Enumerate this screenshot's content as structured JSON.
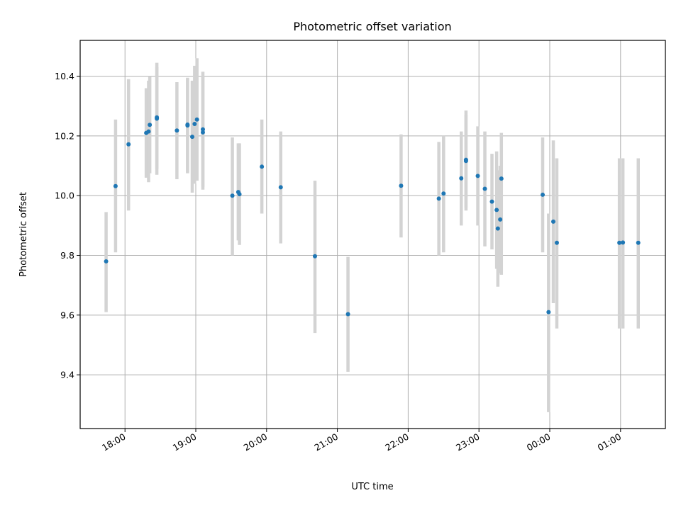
{
  "chart_data": {
    "type": "scatter",
    "title": "Photometric offset variation",
    "xlabel": "UTC time",
    "ylabel": "Photometric offset",
    "x_unit": "hours (UTC)",
    "xlim": [
      "17:22",
      "01:38"
    ],
    "ylim": [
      9.22,
      10.52
    ],
    "x_ticks": [
      "18:00",
      "19:00",
      "20:00",
      "21:00",
      "22:00",
      "23:00",
      "00:00",
      "01:00"
    ],
    "y_ticks": [
      "9.4",
      "9.6",
      "9.8",
      "10.0",
      "10.2",
      "10.4"
    ],
    "grid": true,
    "legend": "none",
    "colors": {
      "point": "#1f77b4",
      "errorbar": "#d3d3d3",
      "grid": "#b0b0b0"
    },
    "points": [
      {
        "x": "17:44",
        "y": 9.78,
        "lo": 9.61,
        "hi": 9.945
      },
      {
        "x": "17:52",
        "y": 10.032,
        "lo": 9.81,
        "hi": 10.255
      },
      {
        "x": "18:03",
        "y": 10.172,
        "lo": 9.95,
        "hi": 10.39
      },
      {
        "x": "18:18",
        "y": 10.21,
        "lo": 10.06,
        "hi": 10.36
      },
      {
        "x": "18:20",
        "y": 10.215,
        "lo": 10.045,
        "hi": 10.385
      },
      {
        "x": "18:21",
        "y": 10.237,
        "lo": 10.075,
        "hi": 10.4
      },
      {
        "x": "18:27",
        "y": 10.262,
        "lo": 10.07,
        "hi": 10.445
      },
      {
        "x": "18:27",
        "y": 10.258,
        "lo": 10.09,
        "hi": 10.43
      },
      {
        "x": "18:44",
        "y": 10.218,
        "lo": 10.055,
        "hi": 10.38
      },
      {
        "x": "18:53",
        "y": 10.235,
        "lo": 10.075,
        "hi": 10.395
      },
      {
        "x": "18:53",
        "y": 10.238,
        "lo": 10.08,
        "hi": 10.39
      },
      {
        "x": "18:57",
        "y": 10.197,
        "lo": 10.01,
        "hi": 10.385
      },
      {
        "x": "18:59",
        "y": 10.24,
        "lo": 10.04,
        "hi": 10.435
      },
      {
        "x": "19:01",
        "y": 10.255,
        "lo": 10.05,
        "hi": 10.46
      },
      {
        "x": "19:06",
        "y": 10.222,
        "lo": 10.02,
        "hi": 10.415
      },
      {
        "x": "19:06",
        "y": 10.212,
        "lo": 10.03,
        "hi": 10.4
      },
      {
        "x": "19:31",
        "y": 10.0,
        "lo": 9.8,
        "hi": 10.195
      },
      {
        "x": "19:36",
        "y": 10.012,
        "lo": 9.85,
        "hi": 10.175
      },
      {
        "x": "19:37",
        "y": 10.005,
        "lo": 9.835,
        "hi": 10.175
      },
      {
        "x": "19:56",
        "y": 10.097,
        "lo": 9.94,
        "hi": 10.255
      },
      {
        "x": "20:12",
        "y": 10.028,
        "lo": 9.84,
        "hi": 10.215
      },
      {
        "x": "20:41",
        "y": 9.797,
        "lo": 9.54,
        "hi": 10.05
      },
      {
        "x": "21:09",
        "y": 9.603,
        "lo": 9.41,
        "hi": 9.795
      },
      {
        "x": "21:54",
        "y": 10.033,
        "lo": 9.86,
        "hi": 10.205
      },
      {
        "x": "22:26",
        "y": 9.99,
        "lo": 9.8,
        "hi": 10.18
      },
      {
        "x": "22:30",
        "y": 10.007,
        "lo": 9.81,
        "hi": 10.2
      },
      {
        "x": "22:45",
        "y": 10.058,
        "lo": 9.9,
        "hi": 10.215
      },
      {
        "x": "22:49",
        "y": 10.12,
        "lo": 9.95,
        "hi": 10.285
      },
      {
        "x": "22:49",
        "y": 10.116,
        "lo": 9.96,
        "hi": 10.27
      },
      {
        "x": "22:59",
        "y": 10.066,
        "lo": 9.9,
        "hi": 10.232
      },
      {
        "x": "23:05",
        "y": 10.023,
        "lo": 9.83,
        "hi": 10.215
      },
      {
        "x": "23:11",
        "y": 9.98,
        "lo": 9.82,
        "hi": 10.14
      },
      {
        "x": "23:15",
        "y": 9.952,
        "lo": 9.755,
        "hi": 10.148
      },
      {
        "x": "23:16",
        "y": 9.89,
        "lo": 9.695,
        "hi": 10.085
      },
      {
        "x": "23:18",
        "y": 9.92,
        "lo": 9.74,
        "hi": 10.1
      },
      {
        "x": "23:19",
        "y": 10.057,
        "lo": 9.735,
        "hi": 10.21
      },
      {
        "x": "23:54",
        "y": 10.003,
        "lo": 9.81,
        "hi": 10.195
      },
      {
        "x": "23:59",
        "y": 9.61,
        "lo": 9.275,
        "hi": 9.94
      },
      {
        "x": "00:03",
        "y": 9.913,
        "lo": 9.64,
        "hi": 10.185
      },
      {
        "x": "00:06",
        "y": 9.842,
        "lo": 9.555,
        "hi": 10.125
      },
      {
        "x": "00:59",
        "y": 9.842,
        "lo": 9.555,
        "hi": 10.125
      },
      {
        "x": "01:02",
        "y": 9.843,
        "lo": 9.555,
        "hi": 10.125
      },
      {
        "x": "01:15",
        "y": 9.842,
        "lo": 9.555,
        "hi": 10.125
      }
    ]
  }
}
